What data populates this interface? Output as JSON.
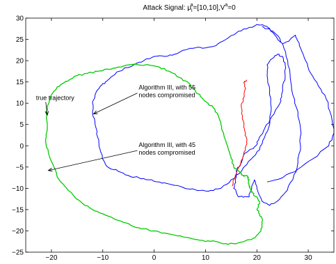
{
  "chart_data": {
    "type": "line",
    "title_parts": {
      "prefix": "Attack Signal: μ",
      "sub1": "i",
      "sup1": "a",
      "mid": "=[10,10],V",
      "sup2": "a",
      "suffix": "=0"
    },
    "xlabel": "",
    "ylabel": "",
    "xlim": [
      -25,
      35
    ],
    "ylim": [
      -25,
      30
    ],
    "xticks": [
      -20,
      -10,
      0,
      10,
      20,
      30
    ],
    "yticks": [
      -25,
      -20,
      -15,
      -10,
      -5,
      0,
      5,
      10,
      15,
      20,
      25,
      30
    ],
    "grid": false,
    "legend": "none",
    "annotations": [
      {
        "lines": [
          "true trajectory"
        ],
        "text_at": [
          -23,
          10.8
        ],
        "arrow_to": [
          -20.8,
          7.2
        ]
      },
      {
        "lines": [
          "Algorithm III, with 55",
          "nodes compromised"
        ],
        "text_at": [
          -3,
          13.2
        ],
        "arrow_to": [
          -11.8,
          7.5
        ]
      },
      {
        "lines": [
          "Algorithm III, with 45",
          "nodes compromised"
        ],
        "text_at": [
          -3,
          -0.3
        ],
        "arrow_to": [
          -20.6,
          -5.8
        ]
      }
    ],
    "series": [
      {
        "color": "#0000ff",
        "x": [
          22,
          25,
          28,
          31,
          34,
          35,
          34.5,
          33.5,
          32,
          30.5,
          29.5,
          28.5,
          27.8,
          27.5,
          26.5,
          25,
          23.5,
          22,
          20,
          18,
          16,
          14,
          12,
          10,
          8,
          6,
          4,
          2,
          0,
          -2,
          -4,
          -6,
          -7.5,
          -8.5,
          -9.5,
          -10.5,
          -11.5,
          -12,
          -12,
          -11.5,
          -11,
          -10.5,
          -9.8,
          -9,
          -7,
          -5,
          -3,
          -1,
          1,
          3,
          5,
          7,
          9,
          11,
          13,
          15,
          17,
          19,
          20.5,
          21.5,
          22.5,
          22.8,
          22.5,
          22,
          22,
          23,
          24,
          25,
          25.5,
          25.5,
          25,
          24.8,
          24.5,
          23.5,
          22.5,
          21.5,
          20.5,
          19.8,
          18.5,
          17.5,
          17,
          16.5,
          16,
          15.8,
          15.5,
          16,
          16.5,
          17.5,
          18.5,
          19,
          19.5,
          20,
          21,
          22.5,
          24,
          25.5,
          27,
          28,
          28.5,
          28.5,
          28,
          27,
          26.5,
          26,
          25,
          24,
          23,
          22,
          21
        ],
        "y": [
          -8.5,
          -7.5,
          -5.5,
          -3,
          0,
          3,
          7,
          11,
          14,
          17,
          20,
          23,
          25,
          26,
          25,
          24,
          26,
          28,
          28.5,
          27.5,
          26.5,
          25,
          23.5,
          23,
          23,
          22.5,
          21.5,
          21,
          21,
          20,
          19,
          18,
          17,
          16,
          15,
          14,
          12,
          10,
          7.5,
          5,
          2,
          -1,
          -3.5,
          -5,
          -6,
          -7,
          -7.5,
          -8,
          -8.5,
          -9,
          -9.5,
          -10.2,
          -10.5,
          -10.5,
          -10,
          -8,
          -6,
          -3,
          -1,
          2,
          5,
          9,
          13,
          16.5,
          19,
          20.5,
          21.5,
          21,
          19,
          16,
          14,
          12,
          10,
          8,
          6,
          4,
          2,
          0,
          -1,
          -2,
          -4,
          -5,
          -6,
          -8,
          -10,
          -11,
          -12,
          -12,
          -12,
          -10,
          -8,
          -10,
          -13,
          -14,
          -13,
          -11,
          -8,
          -4,
          0,
          4,
          8,
          12,
          16,
          20,
          24,
          26,
          27,
          27.5,
          28
        ]
      },
      {
        "color": "#ff0000",
        "x": [
          15.2,
          15.8,
          16.5,
          17.2,
          17.8,
          18,
          17.8,
          17.5,
          17.2,
          17,
          17.3,
          17.8,
          17.5,
          18
        ],
        "y": [
          -9.5,
          -7,
          -5,
          -3,
          -1,
          1,
          3,
          5,
          7,
          9,
          11,
          13.5,
          15,
          15.5
        ]
      },
      {
        "color": "#00cc00",
        "x": [
          -20.8,
          -21,
          -20.5,
          -20,
          -19,
          -18,
          -16.5,
          -15,
          -13,
          -11,
          -9,
          -7,
          -5,
          -3,
          -1,
          1,
          3,
          5,
          6.5,
          8,
          9.5,
          10.5,
          11.5,
          12.5,
          13,
          13.5,
          14,
          14.5,
          15,
          15.5,
          16,
          16.5,
          17,
          17.5,
          18,
          18.2,
          18.5,
          18.5,
          18.7,
          19,
          20,
          20.5,
          20.3,
          20,
          20.5,
          21,
          21,
          21,
          20.8,
          20,
          19,
          17.5,
          16,
          14,
          12,
          10,
          8,
          6,
          4,
          2,
          0,
          -2,
          -4,
          -6,
          -8,
          -10,
          -12,
          -14,
          -15.5,
          -17,
          -18.5,
          -19.5,
          -20.5,
          -21,
          -21,
          -20.8
        ],
        "y": [
          5,
          8,
          10,
          12,
          13.5,
          14.5,
          15.5,
          16.5,
          17,
          17.5,
          18,
          18.5,
          19,
          19,
          19,
          18.5,
          17.5,
          16,
          15,
          13,
          11,
          10,
          9,
          7,
          5,
          3,
          1,
          -1,
          -3,
          -5,
          -5.5,
          -6,
          -6.5,
          -7.2,
          -7,
          -7.5,
          -8,
          -9,
          -10,
          -11,
          -12,
          -13,
          -14,
          -15,
          -16,
          -17,
          -18,
          -19,
          -20,
          -21,
          -22,
          -22.5,
          -23,
          -23,
          -22.5,
          -22.5,
          -22,
          -21.5,
          -21,
          -20.5,
          -20,
          -19.5,
          -19,
          -18,
          -17,
          -16,
          -15,
          -13.5,
          -12,
          -10,
          -8,
          -5,
          -2,
          0,
          2,
          5
        ]
      }
    ]
  }
}
